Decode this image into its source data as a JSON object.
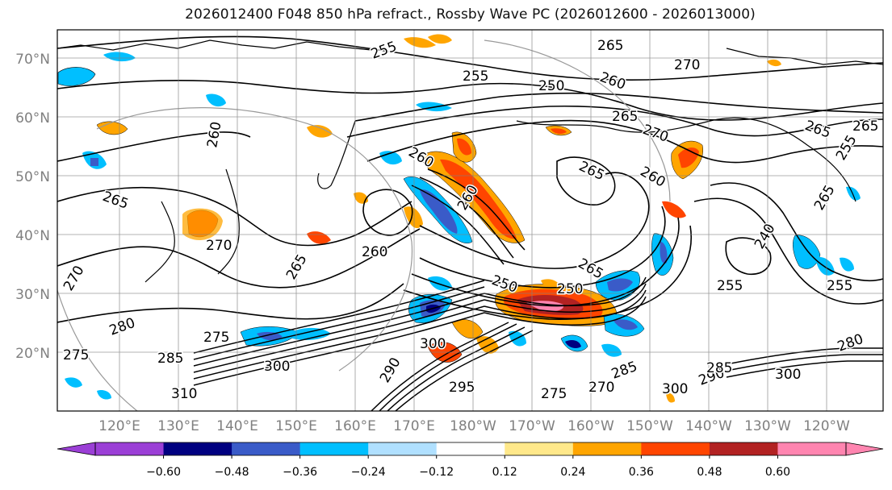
{
  "title": "2026012400 F048 850 hPa refract., Rossby Wave PC (2026012600 - 2026013000)",
  "lat_labels": [
    "70°N",
    "60°N",
    "50°N",
    "40°N",
    "30°N",
    "20°N"
  ],
  "lon_labels": [
    "120°E",
    "130°E",
    "140°E",
    "150°E",
    "160°E",
    "170°E",
    "180°W",
    "170°W",
    "160°W",
    "150°W",
    "140°W",
    "130°W",
    "120°W"
  ],
  "colorbar": {
    "colors": [
      "#9b3fd6",
      "#000080",
      "#3a5bc8",
      "#00bfff",
      "#b0e0ff",
      "#ffffff",
      "#ffe88a",
      "#ffa500",
      "#ff4500",
      "#b22222",
      "#ff85b0"
    ],
    "tick_labels": [
      "−0.60",
      "−0.48",
      "−0.36",
      "−0.24",
      "−0.12",
      "0.12",
      "0.24",
      "0.36",
      "0.48",
      "0.60"
    ]
  },
  "contour_labels": [
    "255",
    "265",
    "270",
    "255",
    "250",
    "260",
    "265",
    "270",
    "265",
    "265",
    "265",
    "255",
    "265",
    "260",
    "265",
    "260",
    "250",
    "260",
    "255",
    "265",
    "250",
    "255",
    "275",
    "280",
    "285",
    "275",
    "300",
    "310",
    "295",
    "300",
    "290",
    "285",
    "270",
    "300",
    "280",
    "270",
    "300",
    "285",
    "290",
    "275",
    "270",
    "260",
    "240",
    "265",
    "260"
  ]
}
